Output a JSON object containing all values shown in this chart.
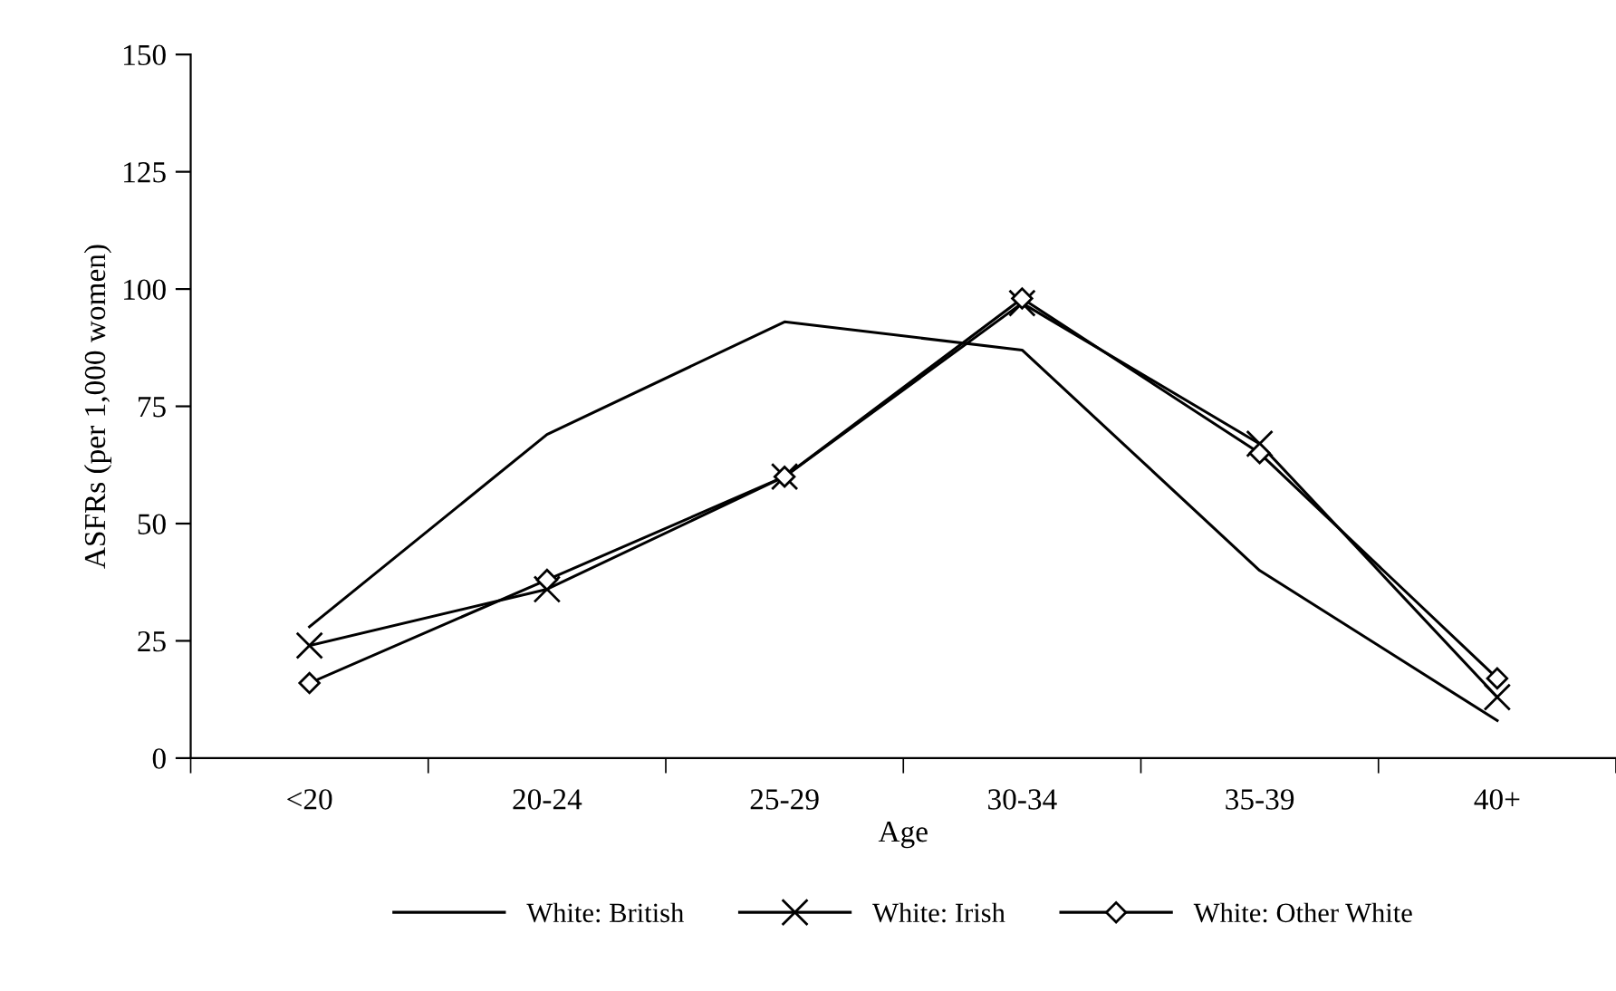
{
  "chart_data": {
    "type": "line",
    "xlabel": "Age",
    "ylabel": "ASFRs (per 1,000 women)",
    "categories": [
      "<20",
      "20-24",
      "25-29",
      "30-34",
      "35-39",
      "40+"
    ],
    "series": [
      {
        "name": "White: British",
        "color": "#000000",
        "marker": "none",
        "values": [
          28,
          69,
          93,
          87,
          40,
          8
        ]
      },
      {
        "name": "White: Irish",
        "color": "#000000",
        "marker": "cross",
        "values": [
          24,
          36,
          60,
          97,
          67,
          13
        ]
      },
      {
        "name": "White: Other White",
        "color": "#000000",
        "marker": "diamond",
        "values": [
          16,
          38,
          60,
          98,
          65,
          17
        ]
      }
    ],
    "ylim": [
      0,
      150
    ],
    "yticks": [
      0,
      25,
      50,
      75,
      100,
      125,
      150
    ],
    "grid": false,
    "legend": "bottom",
    "line_style": "solid"
  }
}
